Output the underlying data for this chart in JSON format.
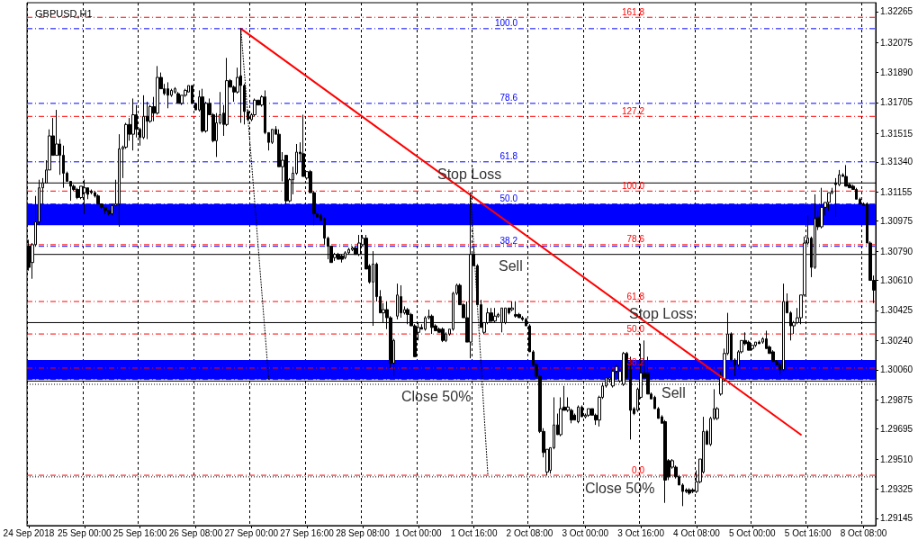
{
  "chart_data": {
    "type": "candlestick",
    "title": "GBPUSD,H1",
    "color": "#000000",
    "categories": [
      "24 Sep 2018",
      null,
      null,
      null,
      null,
      null,
      null,
      null,
      null,
      null,
      null,
      null,
      null,
      null,
      null,
      null,
      "25 Sep 00:00",
      null,
      null,
      null,
      null,
      null,
      null,
      null,
      null,
      null,
      null,
      null,
      null,
      null,
      null,
      null,
      "25 Sep 16:00",
      null,
      null,
      null,
      null,
      null,
      null,
      null,
      null,
      null,
      null,
      null,
      null,
      null,
      null,
      null,
      "26 Sep 08:00",
      null,
      null,
      null,
      null,
      null,
      null,
      null,
      null,
      null,
      null,
      null,
      null,
      null,
      null,
      null,
      "27 Sep 00:00",
      null,
      null,
      null,
      null,
      null,
      null,
      null,
      null,
      null,
      null,
      null,
      null,
      null,
      null,
      null,
      "27 Sep 16:00",
      null,
      null,
      null,
      null,
      null,
      null,
      null,
      null,
      null,
      null,
      null,
      null,
      null,
      null,
      null,
      "28 Sep 08:00",
      null,
      null,
      null,
      null,
      null,
      null,
      null,
      null,
      null,
      null,
      null,
      null,
      null,
      null,
      null,
      "1 Oct 00:00",
      null,
      null,
      null,
      null,
      null,
      null,
      null,
      null,
      null,
      null,
      null,
      null,
      null,
      null,
      null,
      "1 Oct 16:00",
      null,
      null,
      null,
      null,
      null,
      null,
      null,
      null,
      null,
      null,
      null,
      null,
      null,
      null,
      null,
      "2 Oct 08:00",
      null,
      null,
      null,
      null,
      null,
      null,
      null,
      null,
      null,
      null,
      null,
      null,
      null,
      null,
      null,
      "3 Oct 00:00",
      null,
      null,
      null,
      null,
      null,
      null,
      null,
      null,
      null,
      null,
      null,
      null,
      null,
      null,
      null,
      "3 Oct 16:00",
      null,
      null,
      null,
      null,
      null,
      null,
      null,
      null,
      null,
      null,
      null,
      null,
      null,
      null,
      null,
      "4 Oct 08:00",
      null,
      null,
      null,
      null,
      null,
      null,
      null,
      null,
      null,
      null,
      null,
      null,
      null,
      null,
      null,
      "5 Oct 00:00",
      null,
      null,
      null,
      null,
      null,
      null,
      null,
      null,
      null,
      null,
      null,
      null,
      null,
      null,
      null,
      "5 Oct 16:00",
      null,
      null,
      null,
      null,
      null,
      null,
      null,
      null,
      null,
      null,
      null,
      null,
      null,
      null,
      null,
      "8 Oct 08:00",
      null,
      null,
      null
    ],
    "ohlc": [
      [
        1.3082,
        1.3086,
        1.3067,
        1.3069
      ],
      [
        1.3072,
        1.3084,
        1.3062,
        1.3083
      ],
      [
        1.3083,
        1.3113,
        1.3082,
        1.3097
      ],
      [
        1.3097,
        1.3123,
        1.3095,
        1.3118
      ],
      [
        1.3118,
        1.3124,
        1.3108,
        1.3121
      ],
      [
        1.3121,
        1.3135,
        1.3121,
        1.3129
      ],
      [
        1.3129,
        1.3154,
        1.3129,
        1.315
      ],
      [
        1.315,
        1.3161,
        1.3138,
        1.3138
      ],
      [
        1.3138,
        1.3166,
        1.3138,
        1.3145
      ],
      [
        1.3145,
        1.3148,
        1.3126,
        1.3138
      ],
      [
        1.3138,
        1.3144,
        1.3118,
        1.3127
      ],
      [
        1.3127,
        1.3128,
        1.3122,
        1.3122
      ],
      [
        1.3122,
        1.3122,
        1.311,
        1.3119
      ],
      [
        1.3119,
        1.312,
        1.3116,
        1.3117
      ],
      [
        1.3117,
        1.3118,
        1.3111,
        1.3112
      ],
      [
        1.3112,
        1.3119,
        1.3111,
        1.3119
      ],
      [
        1.3115,
        1.3123,
        1.3102,
        1.3118
      ],
      [
        1.3118,
        1.3118,
        1.3111,
        1.3114
      ],
      [
        1.3116,
        1.3117,
        1.3114,
        1.3115
      ],
      [
        1.3115,
        1.3116,
        1.3112,
        1.3113
      ],
      [
        1.3113,
        1.3114,
        1.3108,
        1.3108
      ],
      [
        1.3108,
        1.3108,
        1.3105,
        1.3106
      ],
      [
        1.3106,
        1.3106,
        1.3102,
        1.3104
      ],
      [
        1.3104,
        1.3104,
        1.3101,
        1.3102
      ],
      [
        1.3102,
        1.3108,
        1.3101,
        1.3107
      ],
      [
        1.3107,
        1.3123,
        1.3102,
        1.3108
      ],
      [
        1.3108,
        1.3151,
        1.3094,
        1.3142
      ],
      [
        1.3142,
        1.3144,
        1.3124,
        1.3143
      ],
      [
        1.3143,
        1.3158,
        1.3142,
        1.3157
      ],
      [
        1.3157,
        1.3161,
        1.3147,
        1.3151
      ],
      [
        1.3151,
        1.3173,
        1.3141,
        1.3163
      ],
      [
        1.3163,
        1.3169,
        1.3149,
        1.3154
      ],
      [
        1.3154,
        1.3155,
        1.3144,
        1.3149
      ],
      [
        1.3149,
        1.3175,
        1.3148,
        1.3162
      ],
      [
        1.3162,
        1.3171,
        1.3148,
        1.3159
      ],
      [
        1.3159,
        1.3169,
        1.3158,
        1.3168
      ],
      [
        1.3168,
        1.3174,
        1.3159,
        1.3164
      ],
      [
        1.3164,
        1.3193,
        1.3163,
        1.3186
      ],
      [
        1.3186,
        1.3189,
        1.3179,
        1.3179
      ],
      [
        1.3179,
        1.3182,
        1.3175,
        1.3176
      ],
      [
        1.3179,
        1.3183,
        1.3167,
        1.3175
      ],
      [
        1.3175,
        1.3179,
        1.3174,
        1.3178
      ],
      [
        1.3177,
        1.318,
        1.3176,
        1.3179
      ],
      [
        1.3176,
        1.3177,
        1.317,
        1.317
      ],
      [
        1.317,
        1.3175,
        1.3169,
        1.3175
      ],
      [
        1.3175,
        1.3179,
        1.3174,
        1.3178
      ],
      [
        1.3177,
        1.3181,
        1.3177,
        1.3181
      ],
      [
        1.3181,
        1.3181,
        1.317,
        1.317
      ],
      [
        1.317,
        1.317,
        1.3166,
        1.3166
      ],
      [
        1.3166,
        1.3178,
        1.3165,
        1.3174
      ],
      [
        1.3174,
        1.3179,
        1.3152,
        1.3153
      ],
      [
        1.3153,
        1.3171,
        1.3152,
        1.317
      ],
      [
        1.317,
        1.3173,
        1.3163,
        1.3163
      ],
      [
        1.3163,
        1.3164,
        1.3146,
        1.3147
      ],
      [
        1.3147,
        1.3164,
        1.3137,
        1.3158
      ],
      [
        1.3158,
        1.3177,
        1.3157,
        1.3163
      ],
      [
        1.3164,
        1.3169,
        1.315,
        1.3157
      ],
      [
        1.3157,
        1.3198,
        1.3156,
        1.3184
      ],
      [
        1.3184,
        1.3185,
        1.318,
        1.318
      ],
      [
        1.318,
        1.3181,
        1.3171,
        1.3177
      ],
      [
        1.3177,
        1.3192,
        1.3176,
        1.3186
      ],
      [
        1.3187,
        1.3216,
        1.3158,
        1.3181
      ],
      [
        1.3181,
        1.3182,
        1.3157,
        1.3165
      ],
      [
        1.3165,
        1.3166,
        1.3159,
        1.316
      ],
      [
        1.316,
        1.3164,
        1.3159,
        1.3163
      ],
      [
        1.3163,
        1.3173,
        1.3162,
        1.3172
      ],
      [
        1.3172,
        1.3172,
        1.3169,
        1.3169
      ],
      [
        1.3169,
        1.3175,
        1.3168,
        1.3174
      ],
      [
        1.3174,
        1.3178,
        1.3151,
        1.3152
      ],
      [
        1.3152,
        1.3152,
        1.3141,
        1.3146
      ],
      [
        1.3146,
        1.3154,
        1.3145,
        1.3154
      ],
      [
        1.3154,
        1.3156,
        1.3151,
        1.3151
      ],
      [
        1.3151,
        1.3154,
        1.3131,
        1.3131
      ],
      [
        1.3131,
        1.314,
        1.3122,
        1.3135
      ],
      [
        1.3138,
        1.3138,
        1.3108,
        1.311
      ],
      [
        1.311,
        1.3124,
        1.3109,
        1.3123
      ],
      [
        1.3123,
        1.3131,
        1.3114,
        1.3127
      ],
      [
        1.3127,
        1.3145,
        1.3126,
        1.314
      ],
      [
        1.314,
        1.3146,
        1.3134,
        1.3139
      ],
      [
        1.3139,
        1.3163,
        1.3125,
        1.3125
      ],
      [
        1.3124,
        1.3128,
        1.3123,
        1.3128
      ],
      [
        1.3128,
        1.3129,
        1.3115,
        1.3115
      ],
      [
        1.3115,
        1.3116,
        1.3095,
        1.3102
      ],
      [
        1.3102,
        1.3103,
        1.31,
        1.31
      ],
      [
        1.3101,
        1.3102,
        1.3098,
        1.3098
      ],
      [
        1.3099,
        1.31,
        1.3083,
        1.3087
      ],
      [
        1.3087,
        1.3088,
        1.3074,
        1.3082
      ],
      [
        1.3082,
        1.3082,
        1.3072,
        1.3072
      ],
      [
        1.3075,
        1.3078,
        1.3073,
        1.3077
      ],
      [
        1.3077,
        1.3078,
        1.3074,
        1.3074
      ],
      [
        1.3076,
        1.3077,
        1.3072,
        1.3074
      ],
      [
        1.3075,
        1.3079,
        1.3074,
        1.3078
      ],
      [
        1.3078,
        1.3081,
        1.3077,
        1.308
      ],
      [
        1.308,
        1.3082,
        1.3079,
        1.3081
      ],
      [
        1.3081,
        1.3082,
        1.3077,
        1.3077
      ],
      [
        1.3077,
        1.3089,
        1.3076,
        1.3084
      ],
      [
        1.3083,
        1.3089,
        1.3082,
        1.3087
      ],
      [
        1.3087,
        1.3089,
        1.3068,
        1.3068
      ],
      [
        1.307,
        1.3071,
        1.3059,
        1.306
      ],
      [
        1.306,
        1.3079,
        1.3033,
        1.3071
      ],
      [
        1.3071,
        1.3072,
        1.3048,
        1.3051
      ],
      [
        1.3051,
        1.3055,
        1.3041,
        1.3041
      ],
      [
        1.3041,
        1.3047,
        1.3035,
        1.3043
      ],
      [
        1.3043,
        1.3048,
        1.3031,
        1.3038
      ],
      [
        1.3038,
        1.3039,
        1.3007,
        1.301
      ],
      [
        1.301,
        1.3025,
        1.3002,
        1.3024
      ],
      [
        1.3039,
        1.3059,
        1.3037,
        1.3052
      ],
      [
        1.3051,
        1.3058,
        1.3038,
        1.3041
      ],
      [
        1.3041,
        1.3045,
        1.304,
        1.3043
      ],
      [
        1.3043,
        1.3044,
        1.3034,
        1.304
      ],
      [
        1.304,
        1.3041,
        1.3033,
        1.3033
      ],
      [
        1.3033,
        1.3034,
        1.3014,
        1.3014
      ],
      [
        1.3029,
        1.3035,
        1.3024,
        1.3032
      ],
      [
        1.3032,
        1.3034,
        1.3031,
        1.3031
      ],
      [
        1.3031,
        1.3039,
        1.303,
        1.3038
      ],
      [
        1.3038,
        1.3043,
        1.3037,
        1.3039
      ],
      [
        1.3039,
        1.304,
        1.3028,
        1.3032
      ],
      [
        1.3033,
        1.3034,
        1.303,
        1.303
      ],
      [
        1.3031,
        1.3032,
        1.3029,
        1.3029
      ],
      [
        1.3031,
        1.3032,
        1.3023,
        1.3024
      ],
      [
        1.3024,
        1.3029,
        1.3023,
        1.3028
      ],
      [
        1.3028,
        1.3031,
        1.3027,
        1.3031
      ],
      [
        1.3031,
        1.3054,
        1.303,
        1.3053
      ],
      [
        1.3053,
        1.3059,
        1.3052,
        1.3058
      ],
      [
        1.3058,
        1.3059,
        1.3046,
        1.3046
      ],
      [
        1.3046,
        1.3047,
        1.3038,
        1.3038
      ],
      [
        1.3038,
        1.3048,
        1.3023,
        1.3023
      ],
      [
        1.3023,
        1.3115,
        1.3013,
        1.3077
      ],
      [
        1.3077,
        1.3082,
        1.307,
        1.307
      ],
      [
        1.307,
        1.3071,
        1.3046,
        1.3046
      ],
      [
        1.3046,
        1.3049,
        1.3032,
        1.3032
      ],
      [
        1.3029,
        1.3035,
        1.3028,
        1.3035
      ],
      [
        1.3035,
        1.3044,
        1.3034,
        1.3041
      ],
      [
        1.3041,
        1.3044,
        1.3035,
        1.3036
      ],
      [
        1.3036,
        1.3044,
        1.3035,
        1.3039
      ],
      [
        1.3039,
        1.3041,
        1.3038,
        1.304
      ],
      [
        1.3035,
        1.3044,
        1.3029,
        1.3044
      ],
      [
        1.3035,
        1.3044,
        1.3034,
        1.3044
      ],
      [
        1.3044,
        1.3044,
        1.304,
        1.3041
      ],
      [
        1.3043,
        1.3048,
        1.3042,
        1.3044
      ],
      [
        1.304,
        1.3048,
        1.3038,
        1.3039
      ],
      [
        1.304,
        1.3041,
        1.3038,
        1.3038
      ],
      [
        1.3038,
        1.3039,
        1.3036,
        1.3037
      ],
      [
        1.3037,
        1.3038,
        1.3033,
        1.3033
      ],
      [
        1.3033,
        1.3034,
        1.3017,
        1.3017
      ],
      [
        1.3017,
        1.3018,
        1.3008,
        1.3009
      ],
      [
        1.3009,
        1.301,
        1.3001,
        1.3002
      ],
      [
        1.3002,
        1.3003,
        1.2967,
        1.2968
      ],
      [
        1.2968,
        1.297,
        1.2952,
        1.2955
      ],
      [
        1.2943,
        1.2957,
        1.2941,
        1.2957
      ],
      [
        1.2944,
        1.2958,
        1.2942,
        1.2958
      ],
      [
        1.2958,
        1.2989,
        1.2957,
        1.2972
      ],
      [
        1.2972,
        1.2979,
        1.2966,
        1.2966
      ],
      [
        1.2966,
        1.2989,
        1.2965,
        1.2982
      ],
      [
        1.2983,
        1.2996,
        1.2981,
        1.2981
      ],
      [
        1.2981,
        1.2989,
        1.298,
        1.2983
      ],
      [
        1.2981,
        1.2982,
        1.2973,
        1.2975
      ],
      [
        1.2978,
        1.2979,
        1.2975,
        1.2975
      ],
      [
        1.2974,
        1.2984,
        1.2973,
        1.2983
      ],
      [
        1.2983,
        1.2984,
        1.2977,
        1.2977
      ],
      [
        1.2977,
        1.2979,
        1.2976,
        1.2978
      ],
      [
        1.2978,
        1.2982,
        1.2977,
        1.2982
      ],
      [
        1.2982,
        1.2982,
        1.2978,
        1.2978
      ],
      [
        1.2978,
        1.2979,
        1.2972,
        1.2975
      ],
      [
        1.2975,
        1.299,
        1.2971,
        1.2989
      ],
      [
        1.2989,
        1.2998,
        1.2988,
        1.2996
      ],
      [
        1.2996,
        1.3001,
        1.2995,
        1.3001
      ],
      [
        1.3,
        1.3002,
        1.2998,
        1.3001
      ],
      [
        1.2996,
        1.3006,
        1.2995,
        1.3005
      ],
      [
        1.3005,
        1.3009,
        1.3004,
        1.3008
      ],
      [
        1.2999,
        1.3006,
        1.2998,
        1.3005
      ],
      [
        1.2997,
        1.3017,
        1.2996,
        1.3016
      ],
      [
        1.3016,
        1.3017,
        1.3,
        1.3001
      ],
      [
        1.3006,
        1.3014,
        1.2963,
        1.2981
      ],
      [
        1.2982,
        1.2983,
        1.2978,
        1.2979
      ],
      [
        1.2981,
        1.2995,
        1.298,
        1.2994
      ],
      [
        1.2989,
        1.3022,
        1.2988,
        1.3004
      ],
      [
        1.3004,
        1.3024,
        1.3001,
        1.3001
      ],
      [
        1.3004,
        1.3014,
        1.2991,
        1.2991
      ],
      [
        1.2991,
        1.2992,
        1.2988,
        1.2988
      ],
      [
        1.2989,
        1.299,
        1.2982,
        1.2982
      ],
      [
        1.2982,
        1.2983,
        1.2976,
        1.2976
      ],
      [
        1.2977,
        1.2978,
        1.2973,
        1.2973
      ],
      [
        1.2974,
        1.2975,
        1.2924,
        1.2938
      ],
      [
        1.295,
        1.2951,
        1.2938,
        1.294
      ],
      [
        1.2946,
        1.2951,
        1.2945,
        1.295
      ],
      [
        1.2946,
        1.2947,
        1.2939,
        1.294
      ],
      [
        1.294,
        1.2941,
        1.2935,
        1.2935
      ],
      [
        1.2935,
        1.2936,
        1.2922,
        1.2931
      ],
      [
        1.2932,
        1.2933,
        1.293,
        1.2931
      ],
      [
        1.2932,
        1.2933,
        1.2929,
        1.293
      ],
      [
        1.2932,
        1.2933,
        1.293,
        1.2931
      ],
      [
        1.2931,
        1.2944,
        1.293,
        1.2937
      ],
      [
        1.2937,
        1.2951,
        1.2936,
        1.2951
      ],
      [
        1.2943,
        1.2977,
        1.2942,
        1.2968
      ],
      [
        1.2968,
        1.2969,
        1.296,
        1.296
      ],
      [
        1.296,
        1.2977,
        1.2959,
        1.2976
      ],
      [
        1.2976,
        1.2994,
        1.2975,
        1.2982
      ],
      [
        1.2976,
        1.2983,
        1.2975,
        1.2982
      ],
      [
        1.2991,
        1.3005,
        1.299,
        1.3001
      ],
      [
        1.3,
        1.3019,
        1.2999,
        1.3016
      ],
      [
        1.3016,
        1.3041,
        1.3015,
        1.3028
      ],
      [
        1.3028,
        1.3029,
        1.3011,
        1.3012
      ],
      [
        1.3012,
        1.3013,
        1.3002,
        1.3009
      ],
      [
        1.3009,
        1.3018,
        1.3008,
        1.3017
      ],
      [
        1.3017,
        1.3024,
        1.3016,
        1.3024
      ],
      [
        1.3024,
        1.3029,
        1.3021,
        1.3022
      ],
      [
        1.3023,
        1.3024,
        1.3018,
        1.3018
      ],
      [
        1.3019,
        1.3021,
        1.3018,
        1.3021
      ],
      [
        1.3021,
        1.3023,
        1.302,
        1.3023
      ],
      [
        1.3023,
        1.3024,
        1.3022,
        1.3022
      ],
      [
        1.3023,
        1.3026,
        1.3022,
        1.3025
      ],
      [
        1.3025,
        1.303,
        1.3019,
        1.3019
      ],
      [
        1.302,
        1.3021,
        1.3016,
        1.3016
      ],
      [
        1.3017,
        1.3018,
        1.3011,
        1.3011
      ],
      [
        1.3011,
        1.3012,
        1.3009,
        1.3009
      ],
      [
        1.3009,
        1.301,
        1.3003,
        1.3006
      ],
      [
        1.3006,
        1.3059,
        1.3005,
        1.3048
      ],
      [
        1.3048,
        1.3053,
        1.3041,
        1.3041
      ],
      [
        1.3041,
        1.3042,
        1.3024,
        1.3033
      ],
      [
        1.3033,
        1.3036,
        1.3028,
        1.3035
      ],
      [
        1.3035,
        1.3044,
        1.3034,
        1.3038
      ],
      [
        1.3038,
        1.3052,
        1.3034,
        1.3052
      ],
      [
        1.3052,
        1.3088,
        1.3051,
        1.3084
      ],
      [
        1.3084,
        1.3101,
        1.3083,
        1.3087
      ],
      [
        1.3087,
        1.3088,
        1.3063,
        1.3069
      ],
      [
        1.3069,
        1.3114,
        1.3068,
        1.3099
      ],
      [
        1.31,
        1.3104,
        1.3092,
        1.3094
      ],
      [
        1.3094,
        1.3118,
        1.3093,
        1.3106
      ],
      [
        1.3106,
        1.3109,
        1.3101,
        1.3109
      ],
      [
        1.3109,
        1.3115,
        1.3104,
        1.3115
      ],
      [
        1.3115,
        1.3118,
        1.3114,
        1.3116
      ],
      [
        1.3121,
        1.3124,
        1.31,
        1.312
      ],
      [
        1.312,
        1.3129,
        1.3119,
        1.3126
      ],
      [
        1.3126,
        1.3127,
        1.3125,
        1.3125
      ],
      [
        1.3125,
        1.3132,
        1.3119,
        1.3119
      ],
      [
        1.312,
        1.3121,
        1.3118,
        1.3118
      ],
      [
        1.3119,
        1.312,
        1.3117,
        1.3117
      ],
      [
        1.3117,
        1.3118,
        1.3111,
        1.3111
      ],
      [
        1.3111,
        1.3112,
        1.3108,
        1.3108
      ],
      [
        1.3108,
        1.3109,
        1.3107,
        1.3107
      ],
      [
        1.3108,
        1.3109,
        1.3084,
        1.3084
      ],
      [
        1.3084,
        1.3085,
        1.3061,
        1.3061
      ],
      [
        1.3061,
        1.3064,
        1.3047,
        1.3055
      ]
    ],
    "ylim": [
      1.291,
      1.3232
    ],
    "yticks": [
      1.32265,
      1.32075,
      {
        "value": 1.3189,
        "label": "1.31890"
      },
      1.31705,
      1.31515,
      {
        "value": 1.3134,
        "label": "1.31340"
      },
      1.31155,
      1.30975,
      {
        "value": 1.3079,
        "label": "1.30790"
      },
      {
        "value": 1.3061,
        "label": "1.30610"
      },
      1.30425,
      {
        "value": 1.3024,
        "label": "1.30240"
      },
      {
        "value": 1.3006,
        "label": "1.30060"
      },
      1.29875,
      1.29695,
      {
        "value": 1.2951,
        "label": "1.29510"
      },
      1.29325,
      1.29145
    ],
    "grid": "x",
    "bands": [
      {
        "axis": "y",
        "from": 1.3095,
        "to": 1.3108,
        "color": "#0000ff"
      },
      {
        "axis": "y",
        "from": 1.3,
        "to": 1.3012,
        "color": "#0000ff"
      }
    ],
    "ref_lines": [
      {
        "axis": "y",
        "value": 1.3216,
        "color": "#0000ff",
        "line_style": "dashed"
      },
      {
        "axis": "y",
        "value": 1.317,
        "color": "#0000ff",
        "line_style": "dashed"
      },
      {
        "axis": "y",
        "value": 1.3134,
        "color": "#0000ff",
        "line_style": "dashed"
      },
      {
        "axis": "y",
        "value": 1.3108,
        "color": "#0000ff",
        "line_style": "dashed"
      },
      {
        "axis": "y",
        "value": 1.3082,
        "color": "#0000ff",
        "line_style": "dashed"
      },
      {
        "axis": "y",
        "value": 1.3,
        "color": "#0000ff",
        "line_style": "dashed"
      },
      {
        "axis": "y",
        "value": 1.3223,
        "color": "#ff0000",
        "line_style": "dashed"
      },
      {
        "axis": "y",
        "value": 1.3162,
        "color": "#ff0000",
        "line_style": "dashed"
      },
      {
        "axis": "y",
        "value": 1.3116,
        "color": "#ff0000",
        "line_style": "dashed"
      },
      {
        "axis": "y",
        "value": 1.3083,
        "color": "#ff0000",
        "line_style": "dashed"
      },
      {
        "axis": "y",
        "value": 1.3048,
        "color": "#ff0000",
        "line_style": "dashed"
      },
      {
        "axis": "y",
        "value": 1.3028,
        "color": "#ff0000",
        "line_style": "dashed"
      },
      {
        "axis": "y",
        "value": 1.3007,
        "color": "#ff0000",
        "line_style": "dashed"
      },
      {
        "axis": "y",
        "value": 1.2941,
        "color": "#ff0000",
        "line_style": "dashed"
      },
      {
        "axis": "y",
        "value": 1.3121,
        "label": "Stop Loss",
        "color": "#000000",
        "line_style": "solid"
      },
      {
        "axis": "y",
        "value": 1.3077,
        "label": "Sell",
        "color": "#000000",
        "line_style": "solid"
      },
      {
        "axis": "y",
        "value": 1.3035,
        "label": "Stop Loss",
        "color": "#000000",
        "line_style": "solid"
      },
      {
        "axis": "y",
        "value": 1.2999,
        "label": "Sell",
        "color": "#000000",
        "line_style": "solid"
      },
      {
        "axis": "y",
        "value": 1.2997,
        "label": "Close 50%",
        "color": "#000000",
        "line_style": "dotted"
      },
      {
        "axis": "y",
        "value": 1.294,
        "label": "Close 50%",
        "color": "#000000",
        "line_style": "dotted"
      }
    ],
    "annotations": [
      "100.0",
      "78.6",
      "61.8",
      "50.0",
      "38.2",
      "161.8",
      "127.2",
      "100.0",
      "78.6",
      "61.8",
      "50.0",
      "38.2",
      "0.0"
    ],
    "series": [
      {
        "type": "line",
        "color": "#ff0000",
        "line_style": "solid",
        "values": [
          null,
          null,
          null,
          null,
          null,
          null,
          null,
          null,
          null,
          null,
          null,
          null,
          null,
          null,
          null,
          null,
          null,
          null,
          null,
          null,
          null,
          null,
          null,
          null,
          null,
          null,
          null,
          null,
          null,
          null,
          null,
          null,
          null,
          null,
          null,
          null,
          null,
          null,
          null,
          null,
          null,
          null,
          null,
          null,
          null,
          null,
          null,
          null,
          null,
          null,
          null,
          null,
          null,
          null,
          null,
          null,
          null,
          null,
          null,
          null,
          null,
          1.3216,
          null,
          null,
          null,
          null,
          null,
          null,
          null,
          null,
          null,
          null,
          null,
          null,
          null,
          null,
          null,
          null,
          null,
          null,
          null,
          null,
          null,
          null,
          null,
          null,
          null,
          null,
          null,
          null,
          null,
          null,
          null,
          null,
          null,
          null,
          null,
          null,
          null,
          null,
          null,
          null,
          null,
          null,
          null,
          null,
          null,
          null,
          null,
          null,
          null,
          null,
          null,
          null,
          null,
          null,
          null,
          null,
          null,
          null,
          null,
          null,
          null,
          null,
          null,
          null,
          null,
          null,
          null,
          null,
          null,
          null,
          null,
          null,
          null,
          null,
          null,
          null,
          null,
          null,
          null,
          null,
          null,
          null,
          null,
          null,
          null,
          null,
          null,
          null,
          null,
          null,
          null,
          null,
          null,
          null,
          null,
          null,
          null,
          null,
          null,
          null,
          null,
          null,
          null,
          null,
          null,
          null,
          null,
          null,
          null,
          null,
          null,
          null,
          null,
          null,
          null,
          null,
          null,
          null,
          null,
          null,
          null,
          null,
          null,
          null,
          null,
          null,
          null,
          null,
          null,
          null,
          null,
          null,
          null,
          null,
          null,
          null,
          null,
          null,
          null,
          null,
          null,
          null,
          null,
          null,
          null,
          null,
          null,
          null,
          null,
          null,
          null,
          null,
          null,
          null,
          null,
          null,
          null,
          null,
          null,
          null,
          1.2966,
          null,
          null,
          null,
          null,
          null,
          null,
          null,
          null,
          null,
          null,
          null,
          null,
          null,
          null,
          null,
          null,
          null,
          null,
          null,
          null,
          null
        ]
      },
      {
        "type": "line",
        "color": "#000000",
        "line_style": "dotted",
        "values": [
          null,
          null,
          null,
          null,
          null,
          null,
          null,
          null,
          null,
          null,
          null,
          null,
          null,
          null,
          null,
          null,
          null,
          null,
          null,
          null,
          null,
          null,
          null,
          null,
          null,
          null,
          null,
          null,
          null,
          null,
          null,
          null,
          null,
          null,
          null,
          null,
          null,
          null,
          null,
          null,
          null,
          null,
          null,
          null,
          null,
          null,
          null,
          null,
          null,
          null,
          null,
          null,
          null,
          null,
          null,
          null,
          null,
          null,
          null,
          null,
          null,
          1.3216,
          1.3189,
          1.3162,
          1.3135,
          1.3108,
          1.3081,
          1.3054,
          1.3027,
          1.3,
          null,
          null,
          null,
          null,
          null,
          null,
          null,
          null,
          null,
          null,
          null,
          null,
          null,
          null,
          null,
          null,
          null,
          null,
          null,
          null,
          null,
          null,
          null,
          null,
          null,
          null,
          null,
          null,
          null,
          null,
          null,
          null,
          null,
          null,
          null,
          null,
          null,
          null,
          null,
          null,
          null,
          null,
          null,
          null,
          null,
          null,
          null,
          null,
          null,
          null,
          null,
          null,
          null,
          null,
          null,
          null,
          null,
          null,
          null,
          null,
          null,
          null,
          null,
          null,
          null,
          null,
          null,
          null,
          null,
          null,
          null,
          null,
          null,
          null,
          null,
          null,
          null,
          null,
          null,
          null,
          null,
          null,
          null,
          null,
          null,
          null,
          null,
          null,
          null,
          null,
          null,
          null,
          null,
          null,
          null,
          null,
          null,
          null,
          null,
          null,
          null,
          null,
          null,
          null,
          null,
          null,
          null,
          null,
          null,
          null,
          null,
          null,
          null,
          null,
          null,
          null,
          null,
          null,
          null,
          null,
          null,
          null,
          null,
          null,
          null,
          null,
          null,
          null,
          null,
          null,
          null,
          null,
          null,
          null,
          null,
          null,
          null,
          null,
          null,
          null,
          null,
          null,
          null,
          null,
          null,
          null,
          null,
          null,
          null,
          null,
          null,
          null,
          null,
          null,
          null,
          null,
          null,
          null,
          null,
          null,
          null,
          null,
          null,
          null,
          null,
          null,
          null,
          null,
          null,
          null,
          null,
          null,
          null,
          null
        ]
      },
      {
        "type": "line",
        "color": "#000000",
        "line_style": "dotted",
        "values": [
          null,
          null,
          null,
          null,
          null,
          null,
          null,
          null,
          null,
          null,
          null,
          null,
          null,
          null,
          null,
          null,
          null,
          null,
          null,
          null,
          null,
          null,
          null,
          null,
          null,
          null,
          null,
          null,
          null,
          null,
          null,
          null,
          null,
          null,
          null,
          null,
          null,
          null,
          null,
          null,
          null,
          null,
          null,
          null,
          null,
          null,
          null,
          null,
          null,
          null,
          null,
          null,
          null,
          null,
          null,
          null,
          null,
          null,
          null,
          null,
          null,
          null,
          null,
          null,
          null,
          null,
          null,
          null,
          null,
          null,
          null,
          null,
          null,
          null,
          null,
          null,
          null,
          null,
          null,
          null,
          null,
          null,
          null,
          null,
          null,
          null,
          null,
          null,
          null,
          null,
          null,
          null,
          null,
          null,
          null,
          null,
          null,
          null,
          null,
          null,
          null,
          null,
          null,
          null,
          null,
          null,
          null,
          null,
          null,
          null,
          null,
          null,
          null,
          null,
          null,
          null,
          null,
          null,
          null,
          null,
          null,
          null,
          null,
          null,
          null,
          null,
          null,
          1.3115,
          1.308,
          1.3045,
          1.3011,
          1.2976,
          1.2941,
          null,
          null,
          null,
          null,
          null,
          null,
          null,
          null,
          null,
          null,
          null,
          null,
          null,
          null,
          null,
          null,
          null,
          null,
          null,
          null,
          null,
          null,
          null,
          null,
          null,
          null,
          null,
          null,
          null,
          null,
          null,
          null,
          null,
          null,
          null,
          null,
          null,
          null,
          null,
          null,
          null,
          null,
          null,
          null,
          null,
          null,
          null,
          null,
          null,
          null,
          null,
          null,
          null,
          null,
          null,
          null,
          null,
          null,
          null,
          null,
          null,
          null,
          null,
          null,
          null,
          null,
          null,
          null,
          null,
          null,
          null,
          null,
          null,
          null,
          null,
          null,
          null,
          null,
          null,
          null,
          null,
          null,
          null,
          null,
          null,
          null,
          null,
          null,
          null,
          null,
          null,
          null,
          null,
          null,
          null,
          null,
          null,
          null,
          null,
          null,
          null,
          null,
          null,
          null,
          null,
          null,
          null,
          null,
          null,
          null,
          null
        ]
      }
    ]
  }
}
